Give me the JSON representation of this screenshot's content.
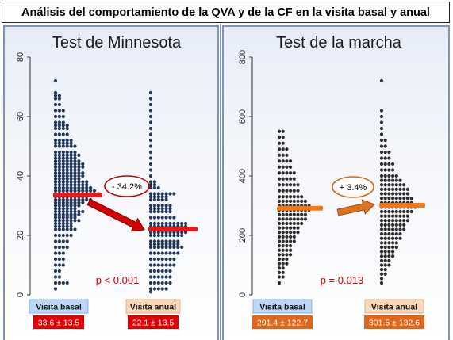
{
  "page_title": "Análisis del comportamiento de la QVA y  de la CF en la visita basal y anual",
  "chart_data": [
    {
      "type": "dot-strip",
      "title": "Test de Minnesota",
      "ylim": [
        0,
        80
      ],
      "yticks": [
        0,
        20,
        40,
        60,
        80
      ],
      "categories": [
        "Visita basal",
        "Visita anual"
      ],
      "stats": [
        "33.6 ± 13.5",
        "22.1 ± 13.5"
      ],
      "means": [
        33.6,
        22.1
      ],
      "change_label": "- 34.2%",
      "p_value": "p < 0.001",
      "dot_color": "#1f3658",
      "mean_color": "#e41a1c",
      "badge_color": "#e00000",
      "badge_text_color": "#ffffff",
      "dots": [
        [
          [
            72,
            1
          ],
          [
            68,
            1
          ],
          [
            67,
            2
          ],
          [
            66,
            2
          ],
          [
            64,
            2
          ],
          [
            62,
            3
          ],
          [
            60,
            3
          ],
          [
            58,
            3
          ],
          [
            57,
            4
          ],
          [
            56,
            4
          ],
          [
            54,
            4
          ],
          [
            52,
            5
          ],
          [
            51,
            5
          ],
          [
            50,
            6
          ],
          [
            48,
            6
          ],
          [
            47,
            7
          ],
          [
            46,
            6
          ],
          [
            45,
            7
          ],
          [
            44,
            8
          ],
          [
            43,
            8
          ],
          [
            42,
            7
          ],
          [
            41,
            8
          ],
          [
            40,
            8
          ],
          [
            39,
            7
          ],
          [
            38,
            9
          ],
          [
            37,
            9
          ],
          [
            36,
            10
          ],
          [
            35,
            11
          ],
          [
            34,
            12
          ],
          [
            33,
            9
          ],
          [
            32,
            10
          ],
          [
            31,
            8
          ],
          [
            30,
            7
          ],
          [
            29,
            6
          ],
          [
            28,
            8
          ],
          [
            27,
            7
          ],
          [
            26,
            6
          ],
          [
            25,
            7
          ],
          [
            24,
            5
          ],
          [
            23,
            5
          ],
          [
            22,
            6
          ],
          [
            20,
            5
          ],
          [
            18,
            4
          ],
          [
            16,
            4
          ],
          [
            14,
            3
          ],
          [
            12,
            3
          ],
          [
            10,
            3
          ],
          [
            8,
            2
          ],
          [
            6,
            2
          ],
          [
            4,
            4
          ],
          [
            2,
            1
          ]
        ],
        [
          [
            68,
            1
          ],
          [
            66,
            1
          ],
          [
            64,
            1
          ],
          [
            62,
            1
          ],
          [
            60,
            1
          ],
          [
            58,
            1
          ],
          [
            56,
            1
          ],
          [
            54,
            1
          ],
          [
            52,
            1
          ],
          [
            50,
            1
          ],
          [
            48,
            1
          ],
          [
            46,
            1
          ],
          [
            44,
            1
          ],
          [
            42,
            1
          ],
          [
            40,
            1
          ],
          [
            38,
            2
          ],
          [
            37,
            2
          ],
          [
            36,
            3
          ],
          [
            34,
            7
          ],
          [
            33,
            5
          ],
          [
            32,
            5
          ],
          [
            30,
            6
          ],
          [
            29,
            6
          ],
          [
            28,
            6
          ],
          [
            26,
            7
          ],
          [
            24,
            10
          ],
          [
            23,
            10
          ],
          [
            22,
            11
          ],
          [
            21,
            10
          ],
          [
            20,
            9
          ],
          [
            18,
            8
          ],
          [
            17,
            8
          ],
          [
            16,
            9
          ],
          [
            14,
            8
          ],
          [
            12,
            7
          ],
          [
            10,
            7
          ],
          [
            8,
            6
          ],
          [
            6,
            6
          ],
          [
            4,
            6
          ],
          [
            2,
            5
          ],
          [
            1,
            1
          ]
        ]
      ]
    },
    {
      "type": "dot-strip",
      "title": "Test de la marcha",
      "ylim": [
        0,
        800
      ],
      "yticks": [
        0,
        200,
        400,
        600,
        800
      ],
      "categories": [
        "Visita basal",
        "Visita anual"
      ],
      "stats": [
        "291.4 ± 122.7",
        "301.5 ± 132.6"
      ],
      "means": [
        291.4,
        301.5
      ],
      "change_label": "+ 3.4%",
      "p_value": "p = 0.013",
      "dot_color": "#2b2b2b",
      "mean_color": "#f07a1a",
      "badge_color": "#e0661a",
      "badge_text_color": "#ffffff",
      "dots": [
        [
          [
            550,
            2
          ],
          [
            530,
            2
          ],
          [
            510,
            2
          ],
          [
            490,
            3
          ],
          [
            470,
            3
          ],
          [
            450,
            4
          ],
          [
            430,
            4
          ],
          [
            410,
            5
          ],
          [
            390,
            5
          ],
          [
            370,
            6
          ],
          [
            350,
            6
          ],
          [
            330,
            7
          ],
          [
            315,
            8
          ],
          [
            300,
            9
          ],
          [
            285,
            9
          ],
          [
            270,
            8
          ],
          [
            255,
            8
          ],
          [
            240,
            7
          ],
          [
            225,
            6
          ],
          [
            210,
            6
          ],
          [
            195,
            5
          ],
          [
            180,
            5
          ],
          [
            165,
            4
          ],
          [
            150,
            4
          ],
          [
            135,
            4
          ],
          [
            120,
            3
          ],
          [
            105,
            3
          ],
          [
            90,
            2
          ],
          [
            75,
            2
          ],
          [
            60,
            2
          ],
          [
            40,
            1
          ]
        ],
        [
          [
            720,
            1
          ],
          [
            620,
            1
          ],
          [
            600,
            1
          ],
          [
            580,
            1
          ],
          [
            560,
            1
          ],
          [
            540,
            1
          ],
          [
            520,
            2
          ],
          [
            500,
            2
          ],
          [
            480,
            3
          ],
          [
            460,
            3
          ],
          [
            440,
            4
          ],
          [
            420,
            4
          ],
          [
            400,
            5
          ],
          [
            385,
            6
          ],
          [
            370,
            7
          ],
          [
            355,
            8
          ],
          [
            340,
            8
          ],
          [
            325,
            9
          ],
          [
            310,
            9
          ],
          [
            295,
            10
          ],
          [
            280,
            9
          ],
          [
            265,
            8
          ],
          [
            250,
            8
          ],
          [
            235,
            7
          ],
          [
            220,
            7
          ],
          [
            205,
            6
          ],
          [
            190,
            6
          ],
          [
            175,
            5
          ],
          [
            160,
            5
          ],
          [
            145,
            4
          ],
          [
            130,
            4
          ],
          [
            115,
            3
          ],
          [
            100,
            3
          ],
          [
            85,
            2
          ],
          [
            70,
            2
          ],
          [
            55,
            1
          ],
          [
            40,
            1
          ]
        ]
      ]
    }
  ]
}
